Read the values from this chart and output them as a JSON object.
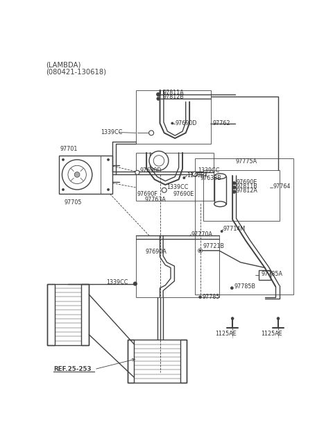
{
  "title_line1": "(LAMBDA)",
  "title_line2": "(080421-130618)",
  "ref_label": "REF.25-253",
  "bg_color": "#ffffff",
  "line_color": "#404040",
  "label_color": "#303030",
  "fs_label": 5.8,
  "fs_title": 7.2
}
